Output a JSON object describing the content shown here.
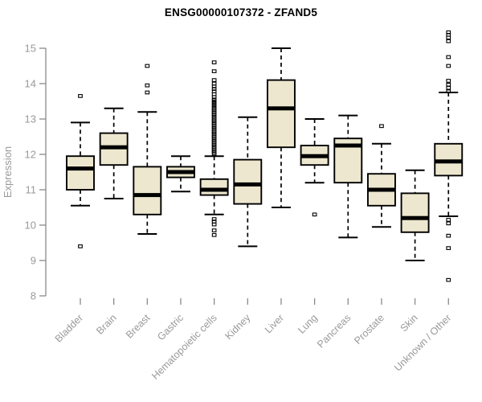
{
  "chart_data": {
    "type": "boxplot",
    "title": "ENSG00000107372 - ZFAND5",
    "ylabel": "Expression",
    "xlabel": "",
    "ylim": [
      8,
      15
    ],
    "yticks": [
      8,
      9,
      10,
      11,
      12,
      13,
      14,
      15
    ],
    "grid": false,
    "legend": "none",
    "categories": [
      "Bladder",
      "Brain",
      "Breast",
      "Gastric",
      "Hematopoietic cells",
      "Kidney",
      "Liver",
      "Lung",
      "Pancreas",
      "Prostate",
      "Skin",
      "Unknown / Other"
    ],
    "series": [
      {
        "name": "Bladder",
        "low": 10.55,
        "q1": 11.0,
        "median": 11.6,
        "q3": 11.95,
        "high": 12.9,
        "outliers": [
          13.65,
          9.4
        ]
      },
      {
        "name": "Brain",
        "low": 10.75,
        "q1": 11.7,
        "median": 12.2,
        "q3": 12.6,
        "high": 13.3,
        "outliers": []
      },
      {
        "name": "Breast",
        "low": 9.75,
        "q1": 10.3,
        "median": 10.85,
        "q3": 11.65,
        "high": 13.2,
        "outliers": [
          14.5,
          13.95,
          13.75
        ]
      },
      {
        "name": "Gastric",
        "low": 10.95,
        "q1": 11.35,
        "median": 11.5,
        "q3": 11.65,
        "high": 11.95,
        "outliers": []
      },
      {
        "name": "Hematopoietic cells",
        "low": 10.3,
        "q1": 10.85,
        "median": 11.0,
        "q3": 11.3,
        "high": 11.95,
        "outliers": [
          14.6,
          14.35,
          14.1,
          14.0,
          13.92,
          13.85,
          13.78,
          13.7,
          13.62,
          13.55,
          13.5,
          13.45,
          13.4,
          13.35,
          13.3,
          13.26,
          13.22,
          13.18,
          13.14,
          13.1,
          13.06,
          13.02,
          12.98,
          12.94,
          12.9,
          12.86,
          12.82,
          12.78,
          12.74,
          12.7,
          12.66,
          12.62,
          12.58,
          12.54,
          12.5,
          12.46,
          12.42,
          12.38,
          12.34,
          12.3,
          12.26,
          12.22,
          12.18,
          12.14,
          12.1,
          12.06,
          12.02,
          10.17,
          10.1,
          10.02,
          9.85,
          9.72
        ]
      },
      {
        "name": "Kidney",
        "low": 9.4,
        "q1": 10.6,
        "median": 11.15,
        "q3": 11.85,
        "high": 13.05,
        "outliers": []
      },
      {
        "name": "Liver",
        "low": 10.5,
        "q1": 12.2,
        "median": 13.3,
        "q3": 14.1,
        "high": 15.0,
        "outliers": []
      },
      {
        "name": "Lung",
        "low": 11.2,
        "q1": 11.7,
        "median": 11.95,
        "q3": 12.25,
        "high": 13.0,
        "outliers": [
          10.3
        ]
      },
      {
        "name": "Pancreas",
        "low": 9.65,
        "q1": 11.2,
        "median": 12.25,
        "q3": 12.45,
        "high": 13.1,
        "outliers": []
      },
      {
        "name": "Prostate",
        "low": 9.95,
        "q1": 10.55,
        "median": 11.0,
        "q3": 11.45,
        "high": 12.3,
        "outliers": [
          12.8
        ]
      },
      {
        "name": "Skin",
        "low": 9.0,
        "q1": 9.8,
        "median": 10.2,
        "q3": 10.9,
        "high": 11.55,
        "outliers": []
      },
      {
        "name": "Unknown / Other",
        "low": 10.25,
        "q1": 11.4,
        "median": 11.8,
        "q3": 12.3,
        "high": 13.75,
        "outliers": [
          15.45,
          15.38,
          15.3,
          15.2,
          14.75,
          14.5,
          14.08,
          13.97,
          13.88,
          13.78,
          10.15,
          10.05,
          9.7,
          9.35,
          8.45
        ]
      }
    ],
    "colors": {
      "box_fill": "#EDE7CF",
      "box_stroke": "#000000",
      "median": "#000000",
      "whisker": "#000000",
      "outlier_stroke": "#000000",
      "axis": "#8a8a8a",
      "tick_label": "#999999",
      "axis_label": "#999999",
      "title": "#000000",
      "background": "#ffffff"
    }
  }
}
